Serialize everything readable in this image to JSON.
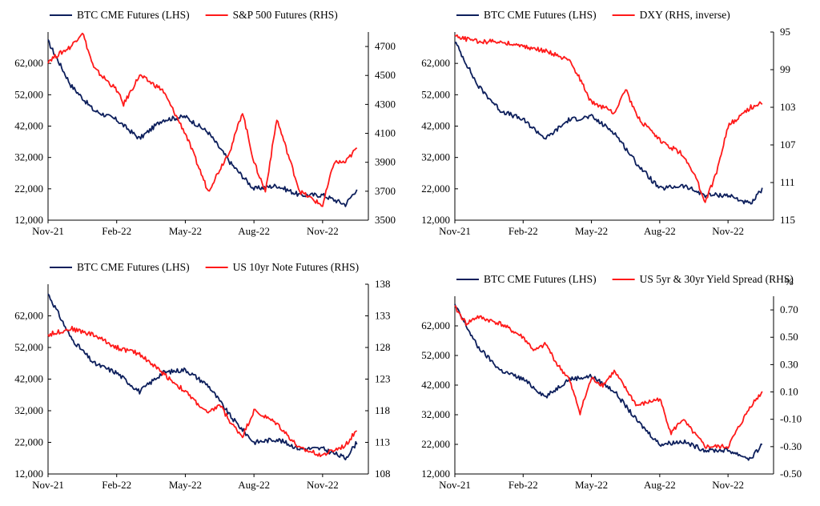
{
  "colors": {
    "btc": "#0d1f5c",
    "other": "#ff1a1a",
    "axis": "#000000"
  },
  "chart_data": [
    {
      "type": "line",
      "legend": [
        "BTC CME Futures (LHS)",
        "S&P 500 Futures (RHS)"
      ],
      "x_ticks": [
        "Nov-21",
        "Feb-22",
        "May-22",
        "Aug-22",
        "Nov-22"
      ],
      "y_left": {
        "min": 12000,
        "max": 72000,
        "ticks": [
          "12,000",
          "22,000",
          "32,000",
          "42,000",
          "52,000",
          "62,000"
        ]
      },
      "y_right": {
        "min": 3500,
        "max": 4800,
        "ticks": [
          "3500",
          "3700",
          "3900",
          "4100",
          "4300",
          "4500",
          "4700"
        ],
        "inverse": false
      },
      "series": [
        {
          "name": "BTC CME Futures (LHS)",
          "axis": "left",
          "x": [
            0,
            0.5,
            1,
            2,
            3,
            4,
            5,
            6,
            7,
            8,
            9,
            10,
            11,
            12,
            13,
            13.5
          ],
          "values": [
            69000,
            62000,
            55000,
            47000,
            44000,
            38000,
            44000,
            45000,
            40000,
            30000,
            22000,
            23000,
            20000,
            20000,
            17000,
            22000
          ]
        },
        {
          "name": "S&P 500 Futures (RHS)",
          "axis": "right",
          "x": [
            0,
            0.5,
            1,
            1.5,
            2,
            3,
            3.3,
            4,
            5,
            6,
            7,
            8,
            8.5,
            9,
            9.5,
            10,
            11,
            12,
            12.5,
            13,
            13.5
          ],
          "values": [
            4600,
            4650,
            4700,
            4800,
            4550,
            4400,
            4300,
            4500,
            4400,
            4100,
            3700,
            4000,
            4250,
            3900,
            3700,
            4200,
            3700,
            3600,
            3900,
            3900,
            4000
          ]
        }
      ]
    },
    {
      "type": "line",
      "legend": [
        "BTC CME Futures (LHS)",
        "DXY (RHS, inverse)"
      ],
      "x_ticks": [
        "Nov-21",
        "Feb-22",
        "May-22",
        "Aug-22",
        "Nov-22"
      ],
      "y_left": {
        "min": 12000,
        "max": 72000,
        "ticks": [
          "12,000",
          "22,000",
          "32,000",
          "42,000",
          "52,000",
          "62,000"
        ]
      },
      "y_right": {
        "min": 95,
        "max": 115,
        "ticks": [
          "95",
          "99",
          "103",
          "107",
          "111",
          "115"
        ],
        "inverse": true
      },
      "series": [
        {
          "name": "BTC CME Futures (LHS)",
          "axis": "left",
          "x": [
            0,
            0.5,
            1,
            2,
            3,
            4,
            5,
            6,
            7,
            8,
            9,
            10,
            11,
            12,
            13,
            13.5
          ],
          "values": [
            69000,
            62000,
            55000,
            47000,
            44000,
            38000,
            44000,
            45000,
            40000,
            30000,
            22000,
            23000,
            20000,
            20000,
            17000,
            22000
          ]
        },
        {
          "name": "DXY (RHS, inverse)",
          "axis": "right",
          "x": [
            0,
            1,
            2,
            3,
            4,
            5,
            5.5,
            6,
            7,
            7.5,
            8,
            9,
            10,
            10.5,
            11,
            11.5,
            12,
            13,
            13.5
          ],
          "values": [
            95.5,
            96,
            96,
            96.5,
            97,
            98,
            100,
            102.5,
            103.5,
            101,
            104,
            106.5,
            108,
            110,
            113,
            110,
            105,
            103,
            102.5
          ]
        }
      ]
    },
    {
      "type": "line",
      "legend": [
        "BTC CME Futures (LHS)",
        "US 10yr Note Futures (RHS)"
      ],
      "x_ticks": [
        "Nov-21",
        "Feb-22",
        "May-22",
        "Aug-22",
        "Nov-22"
      ],
      "y_left": {
        "min": 12000,
        "max": 72000,
        "ticks": [
          "12,000",
          "22,000",
          "32,000",
          "42,000",
          "52,000",
          "62,000"
        ]
      },
      "y_right": {
        "min": 108,
        "max": 138,
        "ticks": [
          "108",
          "113",
          "118",
          "123",
          "128",
          "133",
          "138"
        ],
        "inverse": false
      },
      "series": [
        {
          "name": "BTC CME Futures (LHS)",
          "axis": "left",
          "x": [
            0,
            0.5,
            1,
            2,
            3,
            4,
            5,
            6,
            7,
            8,
            9,
            10,
            11,
            12,
            13,
            13.5
          ],
          "values": [
            69000,
            62000,
            55000,
            47000,
            44000,
            38000,
            44000,
            45000,
            40000,
            30000,
            22000,
            23000,
            20000,
            20000,
            17000,
            22000
          ]
        },
        {
          "name": "US 10yr Note Futures (RHS)",
          "axis": "right",
          "x": [
            0,
            1,
            2,
            3,
            4,
            5,
            6,
            7,
            7.5,
            8,
            8.5,
            9,
            9.5,
            10,
            11,
            12,
            13,
            13.5
          ],
          "values": [
            130,
            131,
            130,
            128,
            127,
            124,
            121,
            117.5,
            119,
            116,
            114,
            118,
            117,
            116,
            112,
            111,
            112.5,
            115
          ]
        }
      ]
    },
    {
      "type": "line",
      "legend": [
        "BTC CME Futures (LHS)",
        "US 5yr & 30yr Yield Spread (RHS)"
      ],
      "unit_label": "%",
      "x_ticks": [
        "Nov-21",
        "Feb-22",
        "May-22",
        "Aug-22",
        "Nov-22"
      ],
      "y_left": {
        "min": 12000,
        "max": 72000,
        "ticks": [
          "12,000",
          "22,000",
          "32,000",
          "42,000",
          "52,000",
          "62,000"
        ]
      },
      "y_right": {
        "min": -0.5,
        "max": 0.8,
        "ticks": [
          "-0.50",
          "-0.30",
          "-0.10",
          "0.10",
          "0.30",
          "0.50",
          "0.70"
        ],
        "inverse": false
      },
      "series": [
        {
          "name": "BTC CME Futures (LHS)",
          "axis": "left",
          "x": [
            0,
            0.5,
            1,
            2,
            3,
            4,
            5,
            6,
            7,
            8,
            9,
            10,
            11,
            12,
            13,
            13.5
          ],
          "values": [
            69000,
            62000,
            55000,
            47000,
            44000,
            38000,
            44000,
            45000,
            40000,
            30000,
            22000,
            23000,
            20000,
            20000,
            17000,
            22000
          ]
        },
        {
          "name": "US 5yr & 30yr Yield Spread (RHS)",
          "axis": "right",
          "x": [
            0,
            0.5,
            1,
            2,
            3,
            3.5,
            4,
            4.5,
            5,
            5.5,
            6,
            6.5,
            7,
            8,
            9,
            9.5,
            10,
            11,
            12,
            13,
            13.5
          ],
          "values": [
            0.72,
            0.6,
            0.65,
            0.6,
            0.5,
            0.4,
            0.45,
            0.3,
            0.2,
            -0.05,
            0.2,
            0.15,
            0.25,
            0.0,
            0.05,
            -0.2,
            -0.1,
            -0.3,
            -0.3,
            0.0,
            0.1
          ]
        }
      ]
    }
  ]
}
